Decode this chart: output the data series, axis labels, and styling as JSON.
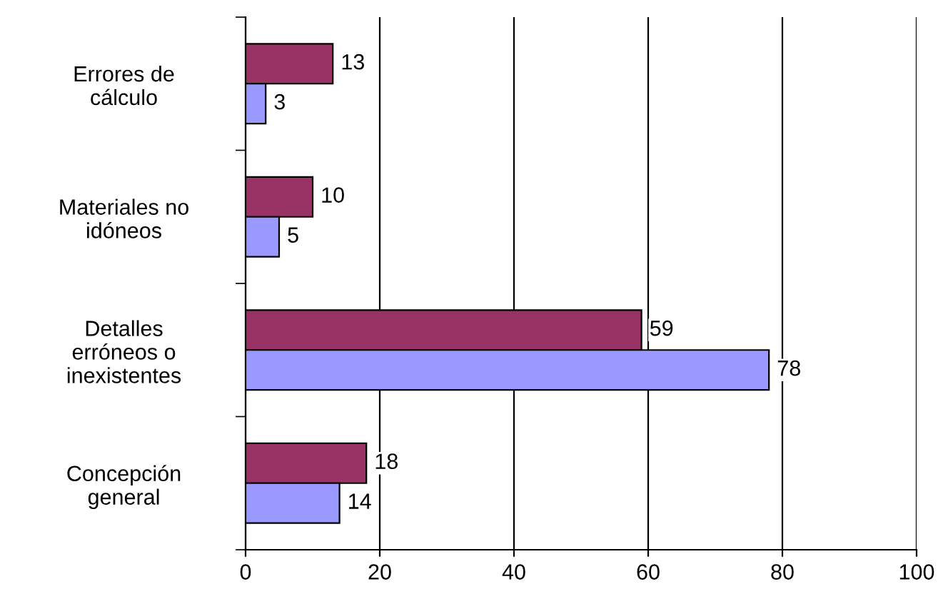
{
  "chart_data": {
    "type": "bar",
    "orientation": "horizontal",
    "categories": [
      "Errores de\ncálculo",
      "Materiales no\nidóneos",
      "Detalles\nerróneos o\ninexistentes",
      "Concepción\ngeneral"
    ],
    "series": [
      {
        "color": "#993366",
        "values": [
          13,
          10,
          59,
          18
        ]
      },
      {
        "color": "#9999ff",
        "values": [
          3,
          5,
          78,
          14
        ]
      }
    ],
    "xlim": [
      0,
      100
    ],
    "xticks": [
      0,
      20,
      40,
      60,
      80,
      100
    ],
    "grid": "x",
    "data_labels": true,
    "legend": false
  }
}
